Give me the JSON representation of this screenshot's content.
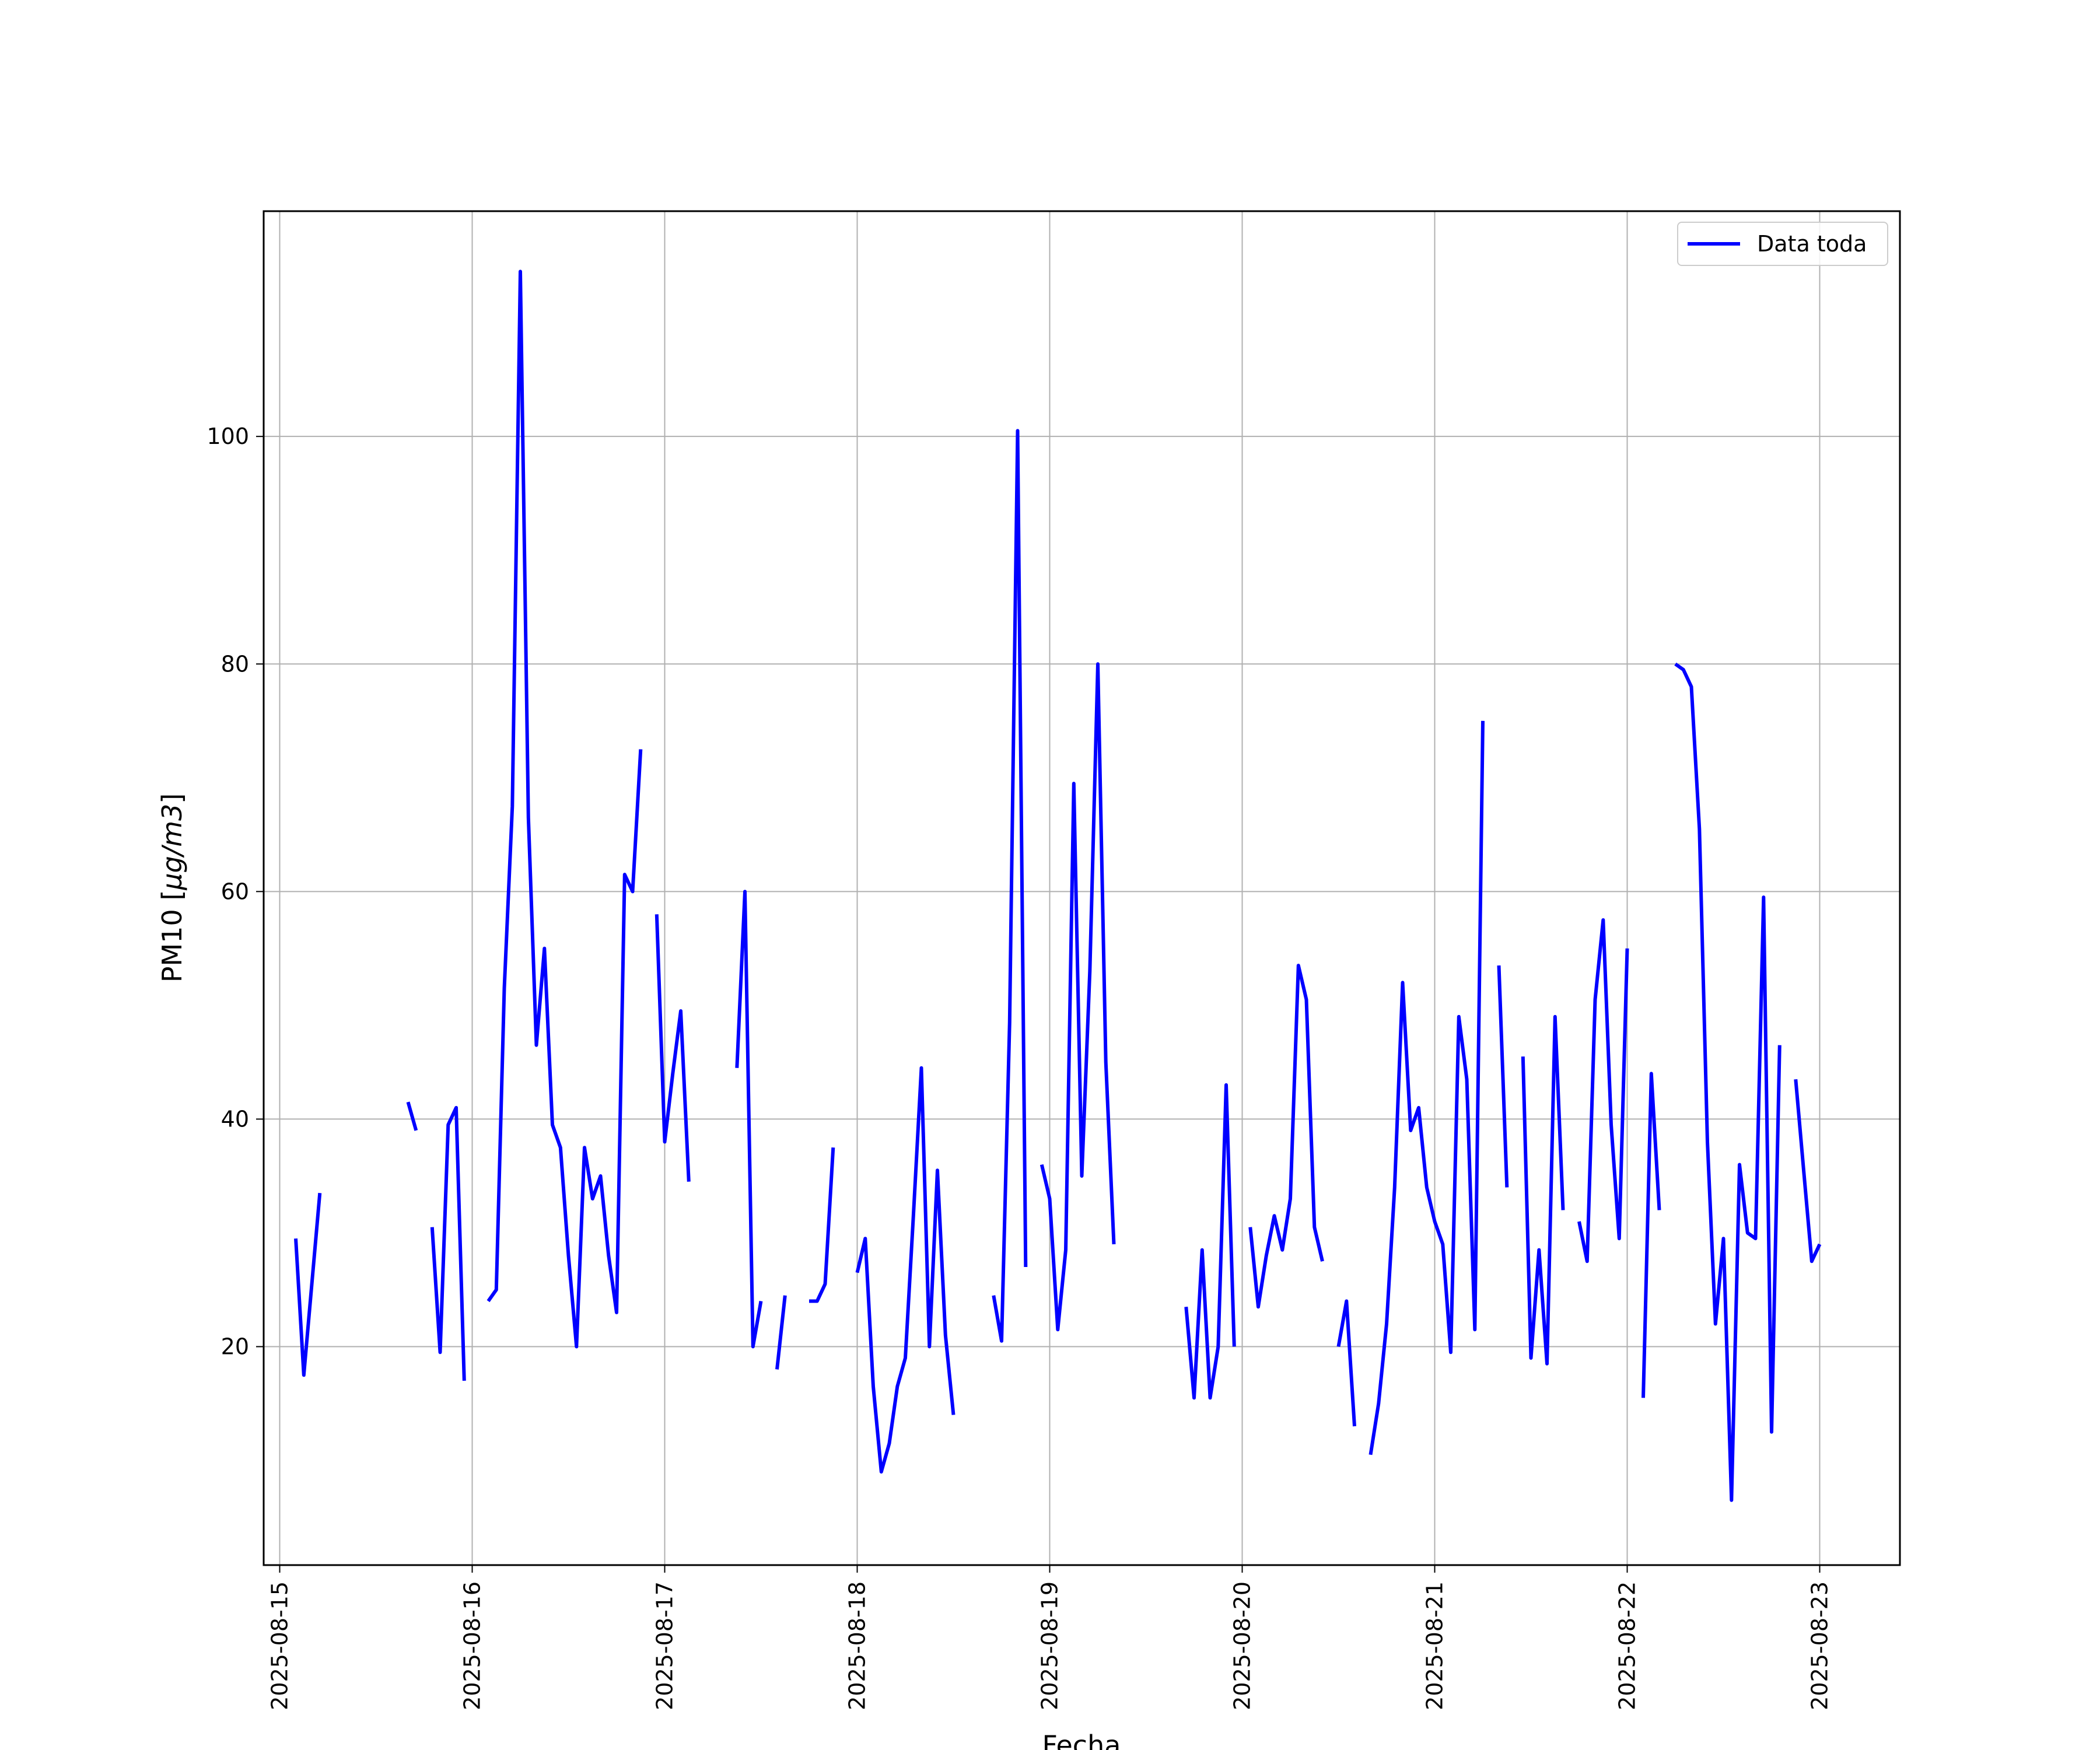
{
  "chart_data": {
    "type": "line",
    "xlabel": "Fecha",
    "ylabel_prefix": "PM10 [",
    "ylabel_unit": "μg/m3",
    "ylabel_suffix": "]",
    "grid": true,
    "legend_position": "top-right",
    "xlim": [
      "2025-08-14T22:00",
      "2025-08-23T10:00"
    ],
    "ylim": [
      0.8,
      119.8
    ],
    "x_ticks": [
      "2025-08-15",
      "2025-08-16",
      "2025-08-17",
      "2025-08-18",
      "2025-08-19",
      "2025-08-20",
      "2025-08-21",
      "2025-08-22",
      "2025-08-23"
    ],
    "y_ticks": [
      20,
      40,
      60,
      80,
      100
    ],
    "series": [
      {
        "name": "Data toda",
        "color": "#0000ff",
        "segments": [
          [
            [
              "2025-08-15T02:00",
              29.5
            ],
            [
              "2025-08-15T03:00",
              17.5
            ],
            [
              "2025-08-15T05:00",
              33.5
            ]
          ],
          [
            [
              "2025-08-15T16:00",
              41.5
            ],
            [
              "2025-08-15T17:00",
              39
            ]
          ],
          [
            [
              "2025-08-15T19:00",
              30.5
            ],
            [
              "2025-08-15T20:00",
              19.5
            ],
            [
              "2025-08-15T21:00",
              39.5
            ],
            [
              "2025-08-15T22:00",
              41
            ],
            [
              "2025-08-15T23:00",
              17
            ]
          ],
          [
            [
              "2025-08-16T02:00",
              24
            ],
            [
              "2025-08-16T03:00",
              25
            ],
            [
              "2025-08-16T04:00",
              51.5
            ],
            [
              "2025-08-16T05:00",
              67.5
            ],
            [
              "2025-08-16T06:00",
              114.5
            ],
            [
              "2025-08-16T07:00",
              66.5
            ],
            [
              "2025-08-16T08:00",
              46.5
            ],
            [
              "2025-08-16T09:00",
              55
            ],
            [
              "2025-08-16T10:00",
              39.5
            ],
            [
              "2025-08-16T11:00",
              37.5
            ],
            [
              "2025-08-16T12:00",
              28
            ],
            [
              "2025-08-16T13:00",
              20
            ],
            [
              "2025-08-16T14:00",
              37.5
            ],
            [
              "2025-08-16T15:00",
              33
            ],
            [
              "2025-08-16T16:00",
              35
            ],
            [
              "2025-08-16T17:00",
              28
            ],
            [
              "2025-08-16T18:00",
              23
            ],
            [
              "2025-08-16T19:00",
              61.5
            ],
            [
              "2025-08-16T20:00",
              60
            ],
            [
              "2025-08-16T21:00",
              72.5
            ]
          ],
          [
            [
              "2025-08-16T23:00",
              58
            ],
            [
              "2025-08-17T00:00",
              38
            ],
            [
              "2025-08-17T01:00",
              44
            ],
            [
              "2025-08-17T02:00",
              49.5
            ],
            [
              "2025-08-17T03:00",
              34.5
            ]
          ],
          [
            [
              "2025-08-17T09:00",
              44.5
            ],
            [
              "2025-08-17T10:00",
              60
            ],
            [
              "2025-08-17T11:00",
              20
            ],
            [
              "2025-08-17T12:00",
              24
            ]
          ],
          [
            [
              "2025-08-17T14:00",
              18
            ],
            [
              "2025-08-17T15:00",
              24.5
            ]
          ],
          [
            [
              "2025-08-17T18:00",
              24
            ],
            [
              "2025-08-17T19:00",
              24
            ],
            [
              "2025-08-17T20:00",
              25.5
            ],
            [
              "2025-08-17T21:00",
              37.5
            ]
          ],
          [
            [
              "2025-08-18T00:00",
              26.5
            ],
            [
              "2025-08-18T01:00",
              29.5
            ],
            [
              "2025-08-18T02:00",
              16.5
            ],
            [
              "2025-08-18T03:00",
              9
            ],
            [
              "2025-08-18T04:00",
              11.5
            ],
            [
              "2025-08-18T05:00",
              16.5
            ],
            [
              "2025-08-18T06:00",
              19
            ],
            [
              "2025-08-18T07:00",
              31.5
            ],
            [
              "2025-08-18T08:00",
              44.5
            ],
            [
              "2025-08-18T09:00",
              20
            ],
            [
              "2025-08-18T10:00",
              35.5
            ],
            [
              "2025-08-18T11:00",
              21
            ],
            [
              "2025-08-18T12:00",
              14
            ]
          ],
          [
            [
              "2025-08-18T17:00",
              24.5
            ],
            [
              "2025-08-18T18:00",
              20.5
            ],
            [
              "2025-08-18T19:00",
              48.5
            ],
            [
              "2025-08-18T20:00",
              100.5
            ],
            [
              "2025-08-18T21:00",
              27
            ]
          ],
          [
            [
              "2025-08-18T23:00",
              36
            ],
            [
              "2025-08-19T00:00",
              33
            ],
            [
              "2025-08-19T01:00",
              21.5
            ],
            [
              "2025-08-19T02:00",
              28.5
            ],
            [
              "2025-08-19T03:00",
              69.5
            ],
            [
              "2025-08-19T04:00",
              35
            ],
            [
              "2025-08-19T05:00",
              53
            ],
            [
              "2025-08-19T06:00",
              80
            ],
            [
              "2025-08-19T07:00",
              45
            ],
            [
              "2025-08-19T08:00",
              29
            ]
          ],
          [
            [
              "2025-08-19T17:00",
              23.5
            ],
            [
              "2025-08-19T18:00",
              15.5
            ],
            [
              "2025-08-19T19:00",
              28.5
            ],
            [
              "2025-08-19T20:00",
              15.5
            ],
            [
              "2025-08-19T21:00",
              20
            ],
            [
              "2025-08-19T22:00",
              43
            ],
            [
              "2025-08-19T23:00",
              20
            ]
          ],
          [
            [
              "2025-08-20T01:00",
              30.5
            ],
            [
              "2025-08-20T02:00",
              23.5
            ],
            [
              "2025-08-20T03:00",
              28
            ],
            [
              "2025-08-20T04:00",
              31.5
            ],
            [
              "2025-08-20T05:00",
              28.5
            ],
            [
              "2025-08-20T06:00",
              33
            ],
            [
              "2025-08-20T07:00",
              53.5
            ],
            [
              "2025-08-20T08:00",
              50.5
            ],
            [
              "2025-08-20T09:00",
              30.5
            ],
            [
              "2025-08-20T10:00",
              27.5
            ]
          ],
          [
            [
              "2025-08-20T12:00",
              20
            ],
            [
              "2025-08-20T13:00",
              24
            ],
            [
              "2025-08-20T14:00",
              13
            ]
          ],
          [
            [
              "2025-08-20T16:00",
              10.5
            ],
            [
              "2025-08-20T17:00",
              15
            ],
            [
              "2025-08-20T18:00",
              22
            ],
            [
              "2025-08-20T19:00",
              34
            ],
            [
              "2025-08-20T20:00",
              52
            ],
            [
              "2025-08-20T21:00",
              39
            ],
            [
              "2025-08-20T22:00",
              41
            ],
            [
              "2025-08-20T23:00",
              34
            ],
            [
              "2025-08-21T00:00",
              31
            ],
            [
              "2025-08-21T01:00",
              29
            ],
            [
              "2025-08-21T02:00",
              19.5
            ],
            [
              "2025-08-21T03:00",
              49
            ],
            [
              "2025-08-21T04:00",
              43.5
            ],
            [
              "2025-08-21T05:00",
              21.5
            ],
            [
              "2025-08-21T06:00",
              75
            ]
          ],
          [
            [
              "2025-08-21T08:00",
              53.5
            ],
            [
              "2025-08-21T09:00",
              34
            ]
          ],
          [
            [
              "2025-08-21T11:00",
              45.5
            ],
            [
              "2025-08-21T12:00",
              19
            ],
            [
              "2025-08-21T13:00",
              28.5
            ],
            [
              "2025-08-21T14:00",
              18.5
            ],
            [
              "2025-08-21T15:00",
              49
            ],
            [
              "2025-08-21T16:00",
              32
            ]
          ],
          [
            [
              "2025-08-21T18:00",
              31
            ],
            [
              "2025-08-21T19:00",
              27.5
            ],
            [
              "2025-08-21T20:00",
              50.5
            ],
            [
              "2025-08-21T21:00",
              57.5
            ],
            [
              "2025-08-21T22:00",
              39.5
            ],
            [
              "2025-08-21T23:00",
              29.5
            ],
            [
              "2025-08-22T00:00",
              55
            ]
          ],
          [
            [
              "2025-08-22T02:00",
              15.5
            ],
            [
              "2025-08-22T03:00",
              44
            ],
            [
              "2025-08-22T04:00",
              32
            ]
          ],
          [
            [
              "2025-08-22T06:00",
              80
            ],
            [
              "2025-08-22T07:00",
              79.5
            ],
            [
              "2025-08-22T08:00",
              78
            ],
            [
              "2025-08-22T09:00",
              65.5
            ],
            [
              "2025-08-22T10:00",
              38
            ],
            [
              "2025-08-22T11:00",
              22
            ],
            [
              "2025-08-22T12:00",
              29.5
            ],
            [
              "2025-08-22T13:00",
              6.5
            ],
            [
              "2025-08-22T14:00",
              36
            ],
            [
              "2025-08-22T15:00",
              30
            ],
            [
              "2025-08-22T16:00",
              29.5
            ],
            [
              "2025-08-22T17:00",
              59.5
            ],
            [
              "2025-08-22T18:00",
              12.5
            ],
            [
              "2025-08-22T19:00",
              46.5
            ]
          ],
          [
            [
              "2025-08-22T21:00",
              43.5
            ],
            [
              "2025-08-22T22:00",
              35.5
            ],
            [
              "2025-08-22T23:00",
              27.5
            ],
            [
              "2025-08-23T00:00",
              29
            ]
          ]
        ]
      }
    ]
  }
}
